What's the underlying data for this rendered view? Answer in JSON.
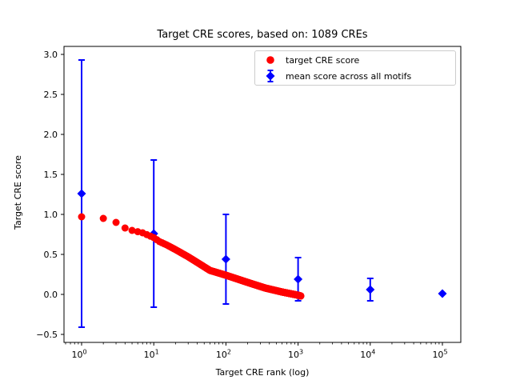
{
  "figure": {
    "background": "#ffffff",
    "frame_color": "#000000",
    "text_color": "#000000",
    "legend_border_color": "#cccccc"
  },
  "chart_data": {
    "type": "scatter",
    "title": "Target CRE scores, based on: 1089 CREs",
    "xlabel": "Target CRE rank (log)",
    "ylabel": "Target CRE score",
    "x_scale": "log",
    "grid": false,
    "legend_position": "upper right",
    "xlim_log10": [
      -0.244,
      5.255
    ],
    "ylim": [
      -0.6,
      3.1
    ],
    "x_tick_base": "10",
    "x_major_tick_exponents": [
      0,
      1,
      2,
      3,
      4,
      5
    ],
    "y_ticks": [
      -0.5,
      0.0,
      0.5,
      1.0,
      1.5,
      2.0,
      2.5,
      3.0
    ],
    "series": [
      {
        "name": "target CRE score",
        "marker": "circle",
        "color": "#ff0000",
        "n_points": 1089,
        "curve_anchors_rank_score": [
          [
            1,
            0.97
          ],
          [
            2,
            0.95
          ],
          [
            3,
            0.9
          ],
          [
            4,
            0.83
          ],
          [
            5,
            0.8
          ],
          [
            7,
            0.77
          ],
          [
            10,
            0.71
          ],
          [
            12,
            0.66
          ],
          [
            15,
            0.62
          ],
          [
            20,
            0.56
          ],
          [
            30,
            0.47
          ],
          [
            40,
            0.4
          ],
          [
            60,
            0.3
          ],
          [
            100,
            0.24
          ],
          [
            200,
            0.15
          ],
          [
            350,
            0.08
          ],
          [
            600,
            0.03
          ],
          [
            1000,
            -0.01
          ],
          [
            1089,
            -0.02
          ]
        ]
      },
      {
        "name": "mean score across all motifs",
        "marker": "diamond",
        "color": "#0000ff",
        "points": [
          {
            "rank": 1,
            "mean": 1.26,
            "err": 1.67
          },
          {
            "rank": 10,
            "mean": 0.76,
            "err": 0.92
          },
          {
            "rank": 100,
            "mean": 0.44,
            "err": 0.56
          },
          {
            "rank": 1000,
            "mean": 0.19,
            "err": 0.27
          },
          {
            "rank": 10000,
            "mean": 0.06,
            "err": 0.14
          },
          {
            "rank": 100000,
            "mean": 0.01,
            "err": 0.0
          }
        ]
      }
    ]
  }
}
